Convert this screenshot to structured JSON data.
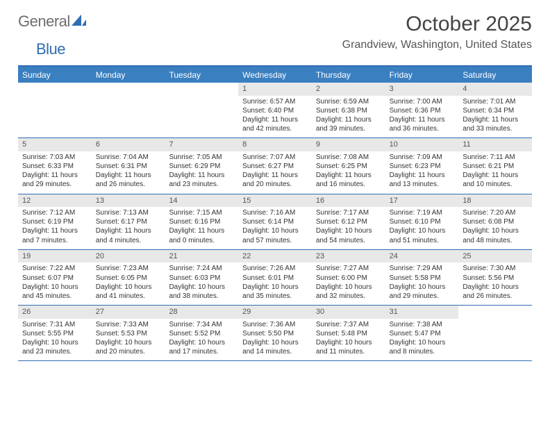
{
  "logo": {
    "word1": "General",
    "word2": "Blue"
  },
  "title": "October 2025",
  "location": "Grandview, Washington, United States",
  "colors": {
    "header_bar": "#3a7fc0",
    "rule": "#2f6db0",
    "daynum_bg": "#e8e8e8",
    "text": "#333333",
    "logo_gray": "#6e6e6e",
    "logo_blue": "#2f6db0"
  },
  "days_of_week": [
    "Sunday",
    "Monday",
    "Tuesday",
    "Wednesday",
    "Thursday",
    "Friday",
    "Saturday"
  ],
  "weeks": [
    [
      {
        "n": "",
        "sr": "",
        "ss": "",
        "dl": ""
      },
      {
        "n": "",
        "sr": "",
        "ss": "",
        "dl": ""
      },
      {
        "n": "",
        "sr": "",
        "ss": "",
        "dl": ""
      },
      {
        "n": "1",
        "sr": "6:57 AM",
        "ss": "6:40 PM",
        "dl": "11 hours and 42 minutes."
      },
      {
        "n": "2",
        "sr": "6:59 AM",
        "ss": "6:38 PM",
        "dl": "11 hours and 39 minutes."
      },
      {
        "n": "3",
        "sr": "7:00 AM",
        "ss": "6:36 PM",
        "dl": "11 hours and 36 minutes."
      },
      {
        "n": "4",
        "sr": "7:01 AM",
        "ss": "6:34 PM",
        "dl": "11 hours and 33 minutes."
      }
    ],
    [
      {
        "n": "5",
        "sr": "7:03 AM",
        "ss": "6:33 PM",
        "dl": "11 hours and 29 minutes."
      },
      {
        "n": "6",
        "sr": "7:04 AM",
        "ss": "6:31 PM",
        "dl": "11 hours and 26 minutes."
      },
      {
        "n": "7",
        "sr": "7:05 AM",
        "ss": "6:29 PM",
        "dl": "11 hours and 23 minutes."
      },
      {
        "n": "8",
        "sr": "7:07 AM",
        "ss": "6:27 PM",
        "dl": "11 hours and 20 minutes."
      },
      {
        "n": "9",
        "sr": "7:08 AM",
        "ss": "6:25 PM",
        "dl": "11 hours and 16 minutes."
      },
      {
        "n": "10",
        "sr": "7:09 AM",
        "ss": "6:23 PM",
        "dl": "11 hours and 13 minutes."
      },
      {
        "n": "11",
        "sr": "7:11 AM",
        "ss": "6:21 PM",
        "dl": "11 hours and 10 minutes."
      }
    ],
    [
      {
        "n": "12",
        "sr": "7:12 AM",
        "ss": "6:19 PM",
        "dl": "11 hours and 7 minutes."
      },
      {
        "n": "13",
        "sr": "7:13 AM",
        "ss": "6:17 PM",
        "dl": "11 hours and 4 minutes."
      },
      {
        "n": "14",
        "sr": "7:15 AM",
        "ss": "6:16 PM",
        "dl": "11 hours and 0 minutes."
      },
      {
        "n": "15",
        "sr": "7:16 AM",
        "ss": "6:14 PM",
        "dl": "10 hours and 57 minutes."
      },
      {
        "n": "16",
        "sr": "7:17 AM",
        "ss": "6:12 PM",
        "dl": "10 hours and 54 minutes."
      },
      {
        "n": "17",
        "sr": "7:19 AM",
        "ss": "6:10 PM",
        "dl": "10 hours and 51 minutes."
      },
      {
        "n": "18",
        "sr": "7:20 AM",
        "ss": "6:08 PM",
        "dl": "10 hours and 48 minutes."
      }
    ],
    [
      {
        "n": "19",
        "sr": "7:22 AM",
        "ss": "6:07 PM",
        "dl": "10 hours and 45 minutes."
      },
      {
        "n": "20",
        "sr": "7:23 AM",
        "ss": "6:05 PM",
        "dl": "10 hours and 41 minutes."
      },
      {
        "n": "21",
        "sr": "7:24 AM",
        "ss": "6:03 PM",
        "dl": "10 hours and 38 minutes."
      },
      {
        "n": "22",
        "sr": "7:26 AM",
        "ss": "6:01 PM",
        "dl": "10 hours and 35 minutes."
      },
      {
        "n": "23",
        "sr": "7:27 AM",
        "ss": "6:00 PM",
        "dl": "10 hours and 32 minutes."
      },
      {
        "n": "24",
        "sr": "7:29 AM",
        "ss": "5:58 PM",
        "dl": "10 hours and 29 minutes."
      },
      {
        "n": "25",
        "sr": "7:30 AM",
        "ss": "5:56 PM",
        "dl": "10 hours and 26 minutes."
      }
    ],
    [
      {
        "n": "26",
        "sr": "7:31 AM",
        "ss": "5:55 PM",
        "dl": "10 hours and 23 minutes."
      },
      {
        "n": "27",
        "sr": "7:33 AM",
        "ss": "5:53 PM",
        "dl": "10 hours and 20 minutes."
      },
      {
        "n": "28",
        "sr": "7:34 AM",
        "ss": "5:52 PM",
        "dl": "10 hours and 17 minutes."
      },
      {
        "n": "29",
        "sr": "7:36 AM",
        "ss": "5:50 PM",
        "dl": "10 hours and 14 minutes."
      },
      {
        "n": "30",
        "sr": "7:37 AM",
        "ss": "5:48 PM",
        "dl": "10 hours and 11 minutes."
      },
      {
        "n": "31",
        "sr": "7:38 AM",
        "ss": "5:47 PM",
        "dl": "10 hours and 8 minutes."
      },
      {
        "n": "",
        "sr": "",
        "ss": "",
        "dl": ""
      }
    ]
  ],
  "labels": {
    "sunrise": "Sunrise:",
    "sunset": "Sunset:",
    "daylight": "Daylight:"
  }
}
